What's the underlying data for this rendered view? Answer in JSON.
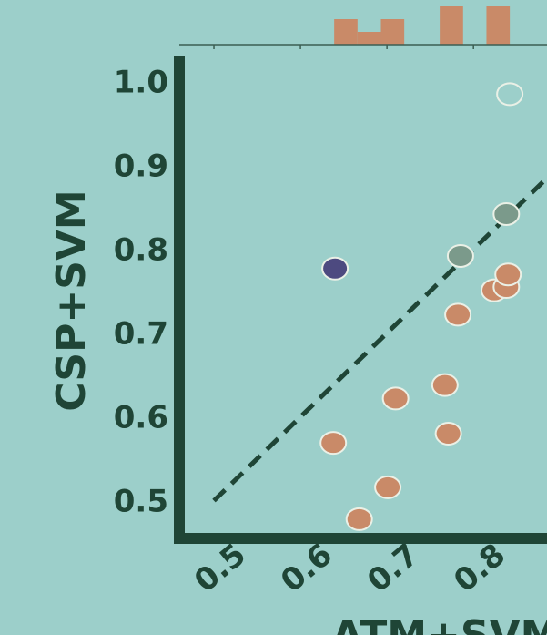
{
  "colors": {
    "background": "#9ccfca",
    "axis": "#1f4536",
    "orange": "#c98a68",
    "green": "#7b9a8b",
    "purple": "#4d4a80",
    "marker_edge": "#eaf0e6"
  },
  "chart_data": {
    "type": "scatter",
    "xlabel": "ATM+SVM",
    "ylabel": "CSP+SVM",
    "xlim": [
      0.46,
      0.885
    ],
    "ylim": [
      0.455,
      1.03
    ],
    "xticks": [
      "0.5",
      "0.6",
      "0.7",
      "0.8"
    ],
    "yticks": [
      "0.5",
      "0.6",
      "0.7",
      "0.8",
      "0.9",
      "1.0"
    ],
    "diagonal": {
      "from": [
        0.5,
        0.5
      ],
      "to": [
        0.885,
        0.885
      ],
      "style": "dashed"
    },
    "series": [
      {
        "color_key": "orange",
        "points": [
          [
            0.668,
            0.478
          ],
          [
            0.701,
            0.516
          ],
          [
            0.638,
            0.569
          ],
          [
            0.771,
            0.58
          ],
          [
            0.71,
            0.622
          ],
          [
            0.767,
            0.638
          ],
          [
            0.782,
            0.722
          ],
          [
            0.824,
            0.751
          ],
          [
            0.838,
            0.755
          ],
          [
            0.84,
            0.77
          ]
        ]
      },
      {
        "color_key": "green",
        "points": [
          [
            0.785,
            0.792
          ],
          [
            0.838,
            0.842
          ]
        ]
      },
      {
        "color_key": "purple",
        "points": [
          [
            0.64,
            0.777
          ]
        ]
      },
      {
        "color_key": "background",
        "points": [
          [
            0.842,
            0.985
          ]
        ]
      }
    ],
    "marginal_histogram": {
      "axis": "x",
      "bins": [
        {
          "from": 0.639,
          "to": 0.666,
          "count": 2
        },
        {
          "from": 0.666,
          "to": 0.693,
          "count": 1
        },
        {
          "from": 0.693,
          "to": 0.72,
          "count": 2
        },
        {
          "from": 0.761,
          "to": 0.788,
          "count": 3
        },
        {
          "from": 0.815,
          "to": 0.842,
          "count": 3
        }
      ],
      "ticks": [
        0.5,
        0.6,
        0.7,
        0.8
      ]
    }
  }
}
